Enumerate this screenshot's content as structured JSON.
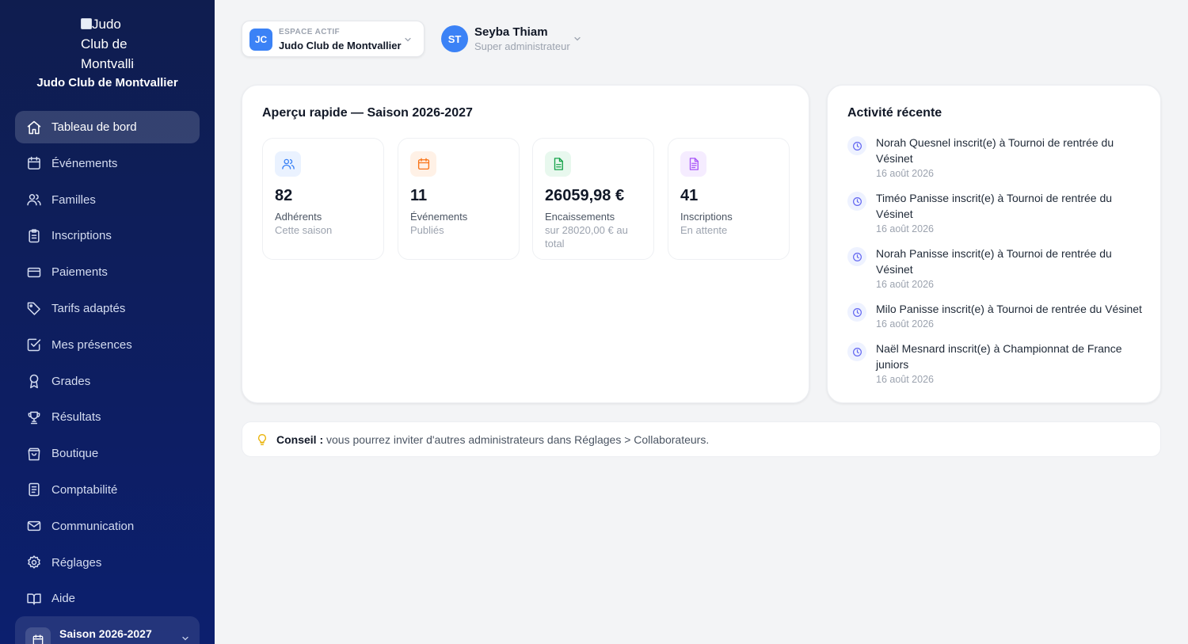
{
  "sidebar": {
    "logo_alt": "Judo Club de Montvallier",
    "club_name": "Judo Club de Montvallier",
    "nav": [
      {
        "label": "Tableau de bord",
        "icon": "home-icon",
        "active": true
      },
      {
        "label": "Événements",
        "icon": "calendar-icon"
      },
      {
        "label": "Familles",
        "icon": "users-icon"
      },
      {
        "label": "Inscriptions",
        "icon": "clipboard-icon"
      },
      {
        "label": "Paiements",
        "icon": "credit-card-icon"
      },
      {
        "label": "Tarifs adaptés",
        "icon": "tag-icon"
      },
      {
        "label": "Mes présences",
        "icon": "checkbox-icon"
      },
      {
        "label": "Grades",
        "icon": "award-icon"
      },
      {
        "label": "Résultats",
        "icon": "trophy-icon"
      },
      {
        "label": "Boutique",
        "icon": "shopping-bag-icon"
      },
      {
        "label": "Comptabilité",
        "icon": "receipt-icon"
      },
      {
        "label": "Communication",
        "icon": "mail-icon"
      },
      {
        "label": "Réglages",
        "icon": "gear-icon"
      },
      {
        "label": "Aide",
        "icon": "book-icon"
      }
    ],
    "season": "Saison 2026-2027"
  },
  "header": {
    "space_caption": "ESPACE ACTIF",
    "space_badge": "JC",
    "space_name": "Judo Club de Montvallier",
    "user_initials": "ST",
    "user_name": "Seyba Thiam",
    "user_role": "Super administrateur"
  },
  "overview": {
    "title": "Aperçu rapide — Saison 2026-2027",
    "stats": [
      {
        "value": "82",
        "label": "Adhérents",
        "sub": "Cette saison",
        "icon": "users-icon",
        "color": "#3b82f6",
        "bg": "#eaf2ff"
      },
      {
        "value": "11",
        "label": "Événements",
        "sub": "Publiés",
        "icon": "calendar-icon",
        "color": "#f97316",
        "bg": "#fff1e6"
      },
      {
        "value": "26059,98 €",
        "label": "Encaissements",
        "sub": "sur 28020,00 € au total",
        "icon": "document-icon",
        "color": "#16a34a",
        "bg": "#e8f8ee"
      },
      {
        "value": "41",
        "label": "Inscriptions",
        "sub": "En attente",
        "icon": "file-text-icon",
        "color": "#a855f7",
        "bg": "#f5ecff"
      }
    ]
  },
  "activity": {
    "title": "Activité récente",
    "items": [
      {
        "text": "Norah Quesnel inscrit(e) à Tournoi de rentrée du Vésinet",
        "date": "16 août 2026"
      },
      {
        "text": "Timéo Panisse inscrit(e) à Tournoi de rentrée du Vésinet",
        "date": "16 août 2026"
      },
      {
        "text": "Norah Panisse inscrit(e) à Tournoi de rentrée du Vésinet",
        "date": "16 août 2026"
      },
      {
        "text": "Milo Panisse inscrit(e) à Tournoi de rentrée du Vésinet",
        "date": "16 août 2026"
      },
      {
        "text": "Naël Mesnard inscrit(e) à Championnat de France juniors",
        "date": "16 août 2026"
      }
    ]
  },
  "tip": {
    "label": "Conseil :",
    "text": " vous pourrez inviter d'autres administrateurs dans Réglages > Collaborateurs."
  }
}
